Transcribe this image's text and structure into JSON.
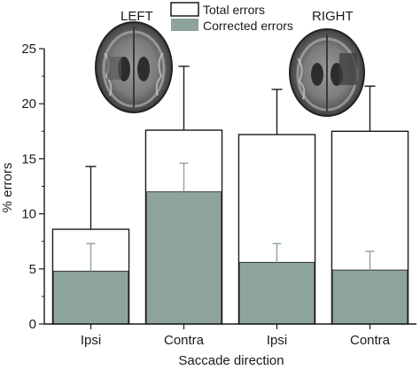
{
  "chart_data": {
    "type": "bar",
    "categories": [
      "Ipsi",
      "Contra",
      "Ipsi",
      "Contra"
    ],
    "series": [
      {
        "name": "Total errors",
        "values": [
          8.6,
          17.6,
          17.2,
          17.5
        ],
        "error_upper": [
          14.3,
          23.4,
          21.3,
          21.6
        ],
        "color": "#ffffff"
      },
      {
        "name": "Corrected errors",
        "values": [
          4.8,
          12.0,
          5.6,
          4.9
        ],
        "error_upper": [
          7.3,
          14.6,
          7.3,
          6.6
        ],
        "color": "#8fa39d"
      }
    ],
    "xlabel": "Saccade direction",
    "ylabel": "% errors",
    "ylim": [
      0,
      25
    ],
    "yticks": [
      0,
      5,
      10,
      15,
      20,
      25
    ],
    "groups": [
      {
        "label": "LEFT",
        "image": "brain-scan-left-lesion"
      },
      {
        "label": "RIGHT",
        "image": "brain-scan-right-lesion"
      }
    ],
    "legend": "top-center",
    "grid": false
  }
}
